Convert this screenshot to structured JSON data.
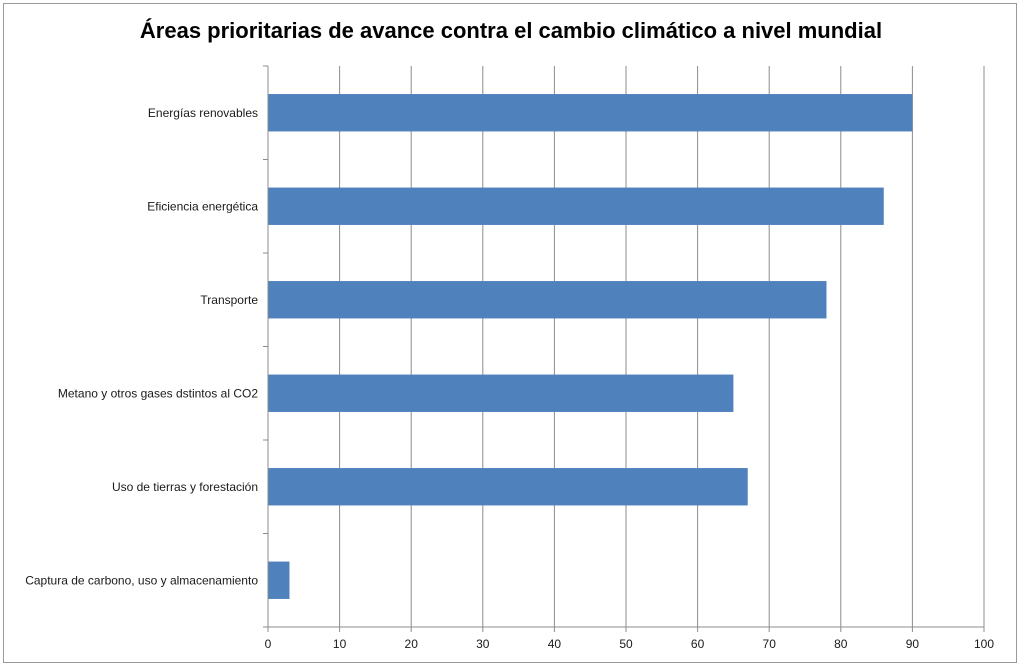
{
  "chart_data": {
    "type": "bar",
    "orientation": "horizontal",
    "title": "Áreas prioritarias de avance contra el cambio climático a nivel mundial",
    "categories": [
      "Energías renovables",
      "Eficiencia energética",
      "Transporte",
      "Metano y otros gases dstintos al CO2",
      "Uso de tierras y forestación",
      "Captura de carbono, uso y almacenamiento"
    ],
    "values": [
      90,
      86,
      78,
      65,
      67,
      3
    ],
    "xlim": [
      0,
      100
    ],
    "xticks": [
      "0",
      "10",
      "20",
      "30",
      "40",
      "50",
      "60",
      "70",
      "80",
      "90",
      "100"
    ],
    "xlabel": "",
    "ylabel": "",
    "grid": "vertical",
    "legend": "none",
    "bar_color": "#4f81bd"
  }
}
